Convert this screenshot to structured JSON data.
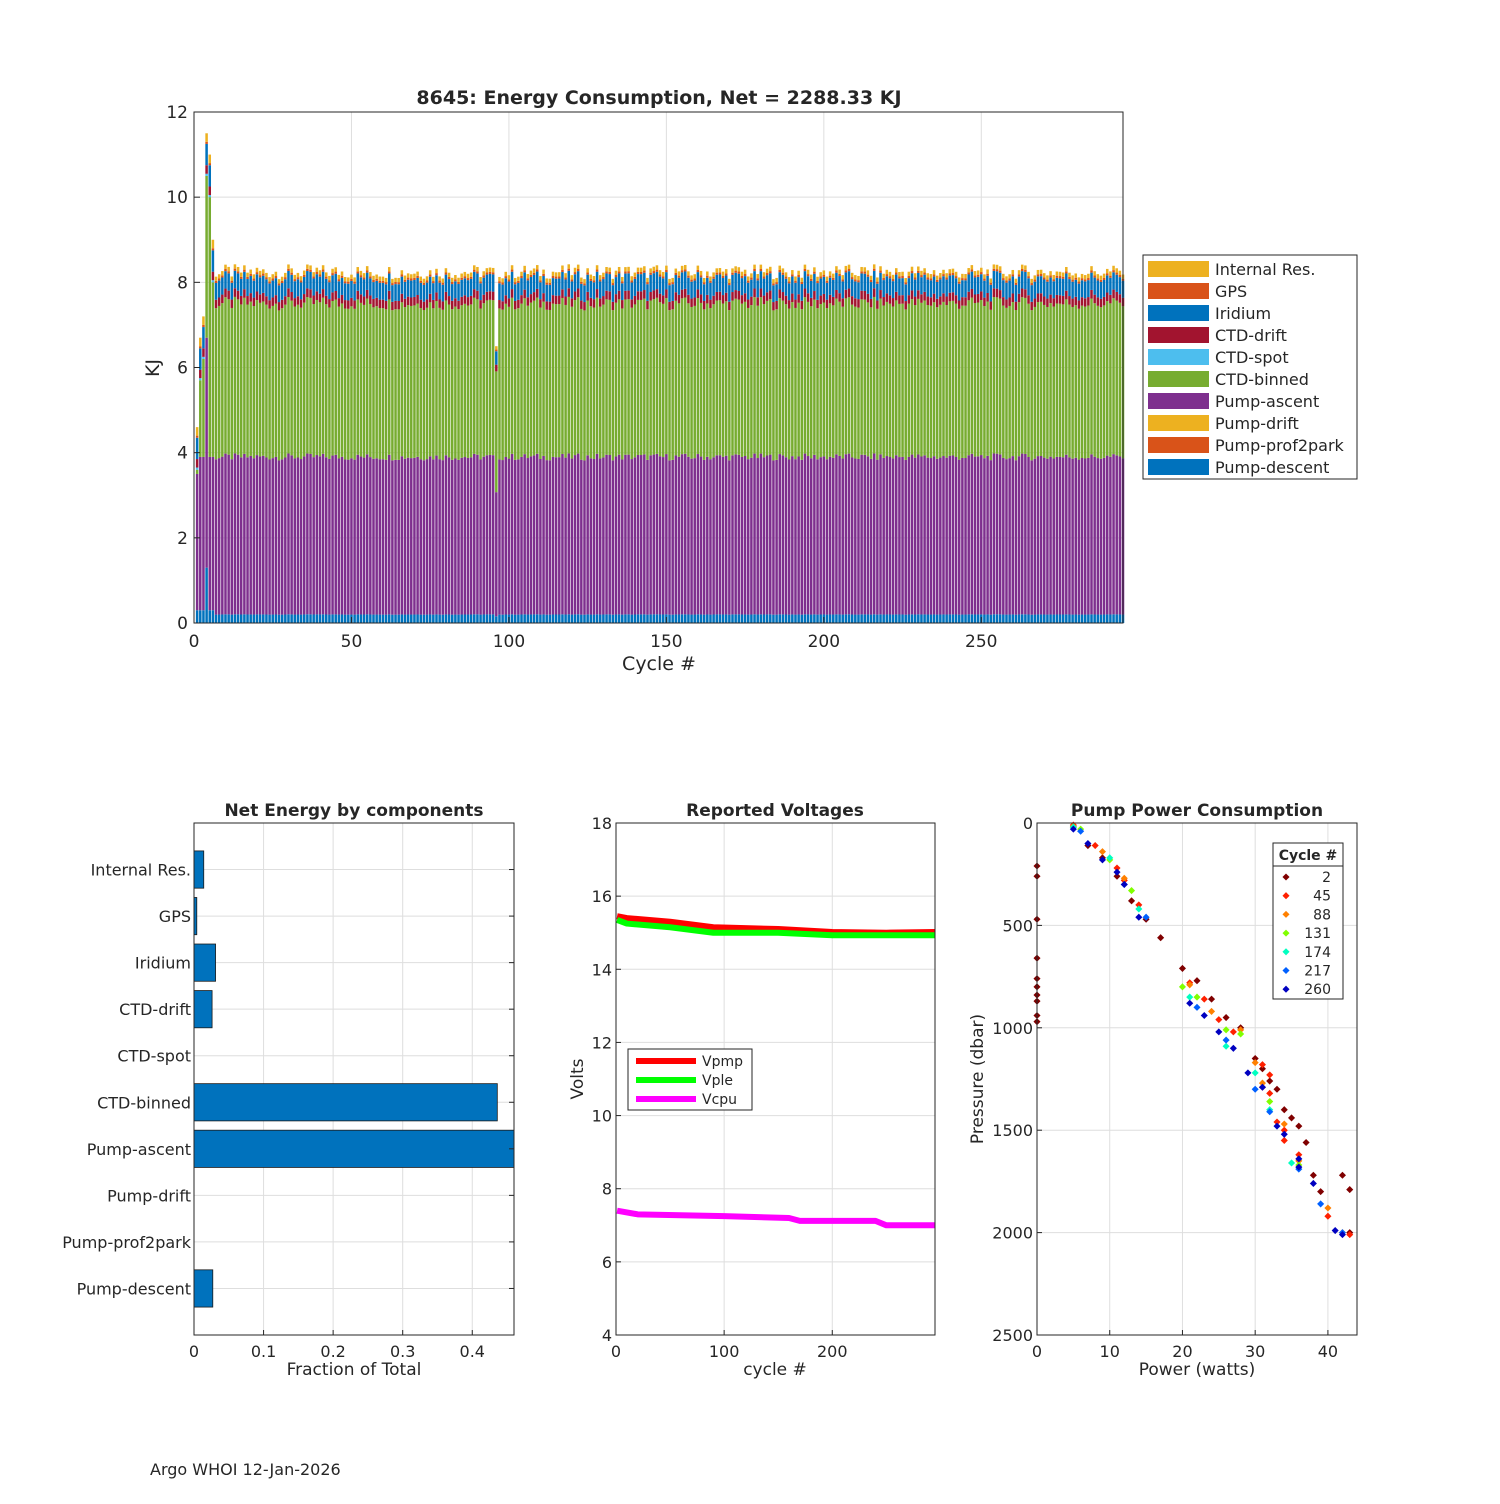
{
  "colors": {
    "Internal Res.": "#EDB120",
    "GPS": "#D95319",
    "Iridium": "#0072BD",
    "CTD-drift": "#A2142F",
    "CTD-spot": "#4DBEEE",
    "CTD-binned": "#77AC30",
    "Pump-ascent": "#7E2F8E",
    "Pump-drift": "#EDB120",
    "Pump-prof2park": "#D95319",
    "Pump-descent": "#0072BD"
  },
  "footer": "Argo WHOI 12-Jan-2026",
  "chart_data": [
    {
      "id": "energy",
      "type": "bar",
      "stacked": true,
      "title": "8645: Energy Consumption,  Net = 2288.33 KJ",
      "xlabel": "Cycle #",
      "ylabel": "KJ",
      "xlim": [
        0,
        295
      ],
      "ylim": [
        0,
        12
      ],
      "xticks": [
        0,
        50,
        100,
        150,
        200,
        250
      ],
      "yticks": [
        0,
        2,
        4,
        6,
        8,
        10,
        12
      ],
      "grid": true,
      "legend_position": "right",
      "legend": [
        "Internal Res.",
        "GPS",
        "Iridium",
        "CTD-drift",
        "CTD-spot",
        "CTD-binned",
        "Pump-ascent",
        "Pump-drift",
        "Pump-prof2park",
        "Pump-descent"
      ],
      "stack_order": [
        "Pump-descent",
        "Pump-prof2park",
        "Pump-drift",
        "Pump-ascent",
        "CTD-binned",
        "CTD-spot",
        "CTD-drift",
        "Iridium",
        "GPS",
        "Internal Res."
      ],
      "cycles": "1-295",
      "typical_cycle": {
        "Pump-descent": 0.2,
        "Pump-prof2park": 0.0,
        "Pump-drift": 0.0,
        "Pump-ascent": 3.7,
        "CTD-binned": 3.6,
        "CTD-spot": 0.0,
        "CTD-drift": 0.2,
        "Iridium": 0.4,
        "GPS": 0.05,
        "Internal Res.": 0.1
      },
      "special_cycles": [
        {
          "cycle": 1,
          "total": 4.6
        },
        {
          "cycle": 2,
          "total": 6.7
        },
        {
          "cycle": 3,
          "total": 7.2
        },
        {
          "cycle": 4,
          "total": 11.5
        },
        {
          "cycle": 5,
          "total": 11.0
        },
        {
          "cycle": 6,
          "total": 9.0
        },
        {
          "cycle": 96,
          "total": 6.5
        }
      ]
    },
    {
      "id": "components",
      "type": "bar",
      "orientation": "horizontal",
      "title": "Net Energy by components",
      "xlabel": "Fraction of Total",
      "xlim": [
        0,
        0.46
      ],
      "xticks": [
        0,
        0.1,
        0.2,
        0.3,
        0.4
      ],
      "xticklabels": [
        "0",
        "0.1",
        "0.2",
        "0.3",
        "0.4"
      ],
      "categories": [
        "Internal Res.",
        "GPS",
        "Iridium",
        "CTD-drift",
        "CTD-spot",
        "CTD-binned",
        "Pump-ascent",
        "Pump-drift",
        "Pump-prof2park",
        "Pump-descent"
      ],
      "values": [
        0.014,
        0.004,
        0.031,
        0.026,
        0.0,
        0.436,
        0.462,
        0.0,
        0.0,
        0.027
      ]
    },
    {
      "id": "voltages",
      "type": "line",
      "title": "Reported Voltages",
      "xlabel": "cycle #",
      "ylabel": "Volts",
      "xlim": [
        0,
        295
      ],
      "ylim": [
        4,
        18
      ],
      "xticks": [
        0,
        100,
        200
      ],
      "yticks": [
        4,
        6,
        8,
        10,
        12,
        14,
        16,
        18
      ],
      "legend_position": "middle-left",
      "series": [
        {
          "name": "Vpmp",
          "color": "#FF0000",
          "x": [
            1,
            10,
            50,
            90,
            150,
            200,
            250,
            295
          ],
          "y": [
            15.45,
            15.4,
            15.3,
            15.15,
            15.1,
            15.02,
            15.0,
            15.02
          ]
        },
        {
          "name": "Vple",
          "color": "#00FF00",
          "x": [
            1,
            10,
            50,
            90,
            150,
            200,
            250,
            295
          ],
          "y": [
            15.35,
            15.25,
            15.15,
            15.0,
            15.0,
            14.93,
            14.93,
            14.93
          ]
        },
        {
          "name": "Vcpu",
          "color": "#FF00FF",
          "x": [
            1,
            20,
            100,
            160,
            170,
            240,
            250,
            295
          ],
          "y": [
            7.4,
            7.3,
            7.25,
            7.2,
            7.12,
            7.12,
            7.0,
            7.0
          ]
        }
      ]
    },
    {
      "id": "pump",
      "type": "scatter",
      "title": "Pump Power Consumption",
      "xlabel": "Power (watts)",
      "ylabel": "Pressure (dbar)",
      "xlim": [
        0,
        44
      ],
      "ylim": [
        0,
        2500
      ],
      "y_reversed": true,
      "xticks": [
        0,
        10,
        20,
        30,
        40
      ],
      "yticks": [
        0,
        500,
        1000,
        1500,
        2000,
        2500
      ],
      "legend_title": "Cycle #",
      "legend_position": "top-right",
      "series": [
        {
          "name": "2",
          "color": "#800000",
          "points": [
            [
              0,
              210
            ],
            [
              0,
              260
            ],
            [
              0,
              470
            ],
            [
              0,
              660
            ],
            [
              0,
              760
            ],
            [
              0,
              800
            ],
            [
              0,
              840
            ],
            [
              0,
              870
            ],
            [
              0,
              940
            ],
            [
              0,
              970
            ],
            [
              5,
              20
            ],
            [
              7,
              110
            ],
            [
              9,
              170
            ],
            [
              11,
              260
            ],
            [
              13,
              380
            ],
            [
              15,
              470
            ],
            [
              17,
              560
            ],
            [
              20,
              710
            ],
            [
              22,
              770
            ],
            [
              24,
              860
            ],
            [
              26,
              950
            ],
            [
              28,
              1000
            ],
            [
              30,
              1150
            ],
            [
              31,
              1200
            ],
            [
              32,
              1260
            ],
            [
              33,
              1300
            ],
            [
              34,
              1400
            ],
            [
              35,
              1440
            ],
            [
              36,
              1480
            ],
            [
              37,
              1560
            ],
            [
              38,
              1720
            ],
            [
              39,
              1800
            ],
            [
              42,
              1720
            ],
            [
              43,
              1790
            ],
            [
              43,
              2000
            ]
          ]
        },
        {
          "name": "45",
          "color": "#FF2000",
          "points": [
            [
              5,
              10
            ],
            [
              8,
              110
            ],
            [
              11,
              220
            ],
            [
              12,
              280
            ],
            [
              14,
              400
            ],
            [
              21,
              780
            ],
            [
              23,
              860
            ],
            [
              25,
              960
            ],
            [
              27,
              1020
            ],
            [
              31,
              1180
            ],
            [
              32,
              1230
            ],
            [
              31,
              1290
            ],
            [
              32,
              1320
            ],
            [
              33,
              1460
            ],
            [
              34,
              1500
            ],
            [
              34,
              1550
            ],
            [
              36,
              1620
            ],
            [
              40,
              1920
            ],
            [
              43,
              2010
            ]
          ]
        },
        {
          "name": "88",
          "color": "#FF8000",
          "points": [
            [
              5,
              15
            ],
            [
              9,
              140
            ],
            [
              12,
              270
            ],
            [
              21,
              790
            ],
            [
              24,
              920
            ],
            [
              28,
              1010
            ],
            [
              30,
              1170
            ],
            [
              31,
              1270
            ],
            [
              34,
              1470
            ],
            [
              36,
              1650
            ],
            [
              40,
              1880
            ],
            [
              42,
              2000
            ]
          ]
        },
        {
          "name": "131",
          "color": "#80FF00",
          "points": [
            [
              6,
              30
            ],
            [
              10,
              180
            ],
            [
              13,
              330
            ],
            [
              20,
              800
            ],
            [
              22,
              850
            ],
            [
              26,
              1010
            ],
            [
              28,
              1030
            ],
            [
              32,
              1360
            ],
            [
              36,
              1670
            ]
          ]
        },
        {
          "name": "174",
          "color": "#00FFC0",
          "points": [
            [
              5,
              20
            ],
            [
              10,
              170
            ],
            [
              14,
              420
            ],
            [
              21,
              850
            ],
            [
              26,
              1090
            ],
            [
              30,
              1220
            ],
            [
              32,
              1400
            ],
            [
              35,
              1660
            ]
          ]
        },
        {
          "name": "217",
          "color": "#0060FF",
          "points": [
            [
              6,
              40
            ],
            [
              12,
              300
            ],
            [
              15,
              460
            ],
            [
              22,
              900
            ],
            [
              26,
              1060
            ],
            [
              30,
              1300
            ],
            [
              32,
              1410
            ],
            [
              36,
              1690
            ],
            [
              39,
              1860
            ],
            [
              42,
              2000
            ]
          ]
        },
        {
          "name": "260",
          "color": "#0000C0",
          "points": [
            [
              5,
              30
            ],
            [
              7,
              100
            ],
            [
              9,
              180
            ],
            [
              11,
              240
            ],
            [
              12,
              300
            ],
            [
              14,
              460
            ],
            [
              21,
              880
            ],
            [
              23,
              940
            ],
            [
              25,
              1020
            ],
            [
              27,
              1100
            ],
            [
              29,
              1220
            ],
            [
              31,
              1290
            ],
            [
              33,
              1480
            ],
            [
              34,
              1520
            ],
            [
              36,
              1640
            ],
            [
              36,
              1680
            ],
            [
              38,
              1760
            ],
            [
              41,
              1990
            ],
            [
              42,
              2010
            ]
          ]
        }
      ]
    }
  ]
}
